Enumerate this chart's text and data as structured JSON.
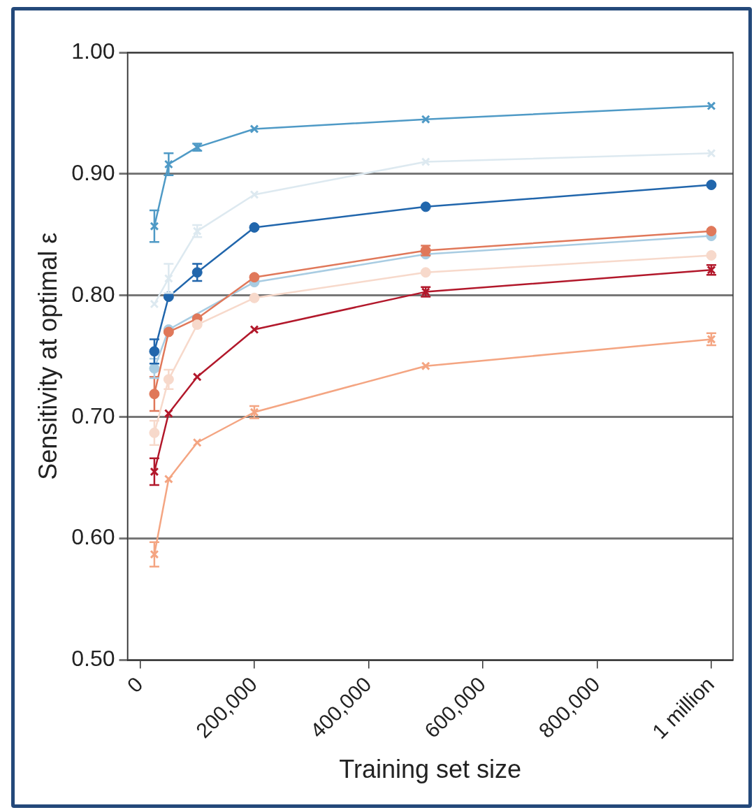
{
  "chart_data": {
    "type": "line",
    "xlabel": "Training set size",
    "ylabel": "Sensitivity at optimal ε",
    "x": [
      25000,
      50000,
      100000,
      200000,
      500000,
      1000000
    ],
    "xlim": [
      -22000,
      1038000
    ],
    "xticks": [
      0,
      {
        "value": 200000,
        "label": "200,000"
      },
      {
        "value": 400000,
        "label": "400,000"
      },
      {
        "value": 600000,
        "label": "600,000"
      },
      {
        "value": 800000,
        "label": "800,000"
      },
      {
        "value": 1000000,
        "label": "1 million"
      }
    ],
    "ylim": [
      0.5,
      1.0
    ],
    "yticks": [
      {
        "value": 0.5,
        "label": "0.50"
      },
      {
        "value": 0.6,
        "label": "0.60"
      },
      {
        "value": 0.7,
        "label": "0.70"
      },
      {
        "value": 0.8,
        "label": "0.80"
      },
      {
        "value": 0.9,
        "label": "0.90"
      },
      {
        "value": 1.0,
        "label": "1.00"
      }
    ],
    "grid": "y",
    "legend": false,
    "line_style": "solid",
    "series": [
      {
        "color": "#f4a582",
        "marker": "cross",
        "values": [
          0.587,
          0.649,
          0.679,
          0.704,
          0.742,
          0.764
        ],
        "errors": [
          0.01,
          null,
          null,
          0.005,
          null,
          0.005
        ]
      },
      {
        "color": "#b2182b",
        "marker": "cross",
        "values": [
          0.655,
          0.703,
          0.733,
          0.772,
          0.803,
          0.821
        ],
        "errors": [
          0.011,
          null,
          null,
          null,
          0.004,
          0.004
        ]
      },
      {
        "color": "#f7d9cb",
        "marker": "circle",
        "values": [
          0.687,
          0.731,
          0.776,
          0.798,
          0.819,
          0.833
        ],
        "errors": [
          0.01,
          0.008,
          null,
          null,
          null,
          null
        ]
      },
      {
        "color": "#e0785a",
        "marker": "circle",
        "values": [
          0.719,
          0.77,
          0.781,
          0.815,
          0.837,
          0.853
        ],
        "errors": [
          0.014,
          null,
          null,
          null,
          0.004,
          null
        ]
      },
      {
        "color": "#a8cce2",
        "marker": "circle",
        "values": [
          0.74,
          0.772,
          null,
          0.811,
          0.834,
          0.849
        ],
        "errors": [
          0.008,
          null,
          null,
          null,
          null,
          null
        ]
      },
      {
        "color": "#2166ac",
        "marker": "circle",
        "values": [
          0.754,
          0.799,
          0.819,
          0.856,
          0.873,
          0.891
        ],
        "errors": [
          0.01,
          null,
          0.007,
          null,
          null,
          null
        ]
      },
      {
        "color": "#dde9f0",
        "marker": "cross",
        "values": [
          0.793,
          0.814,
          0.853,
          0.883,
          0.91,
          0.917
        ],
        "errors": [
          null,
          0.012,
          0.005,
          null,
          null,
          null
        ]
      },
      {
        "color": "#4f9ac6",
        "marker": "cross",
        "values": [
          0.857,
          0.908,
          0.922,
          0.937,
          0.945,
          0.956
        ],
        "errors": [
          0.013,
          0.009,
          0.003,
          null,
          null,
          null
        ]
      }
    ]
  }
}
